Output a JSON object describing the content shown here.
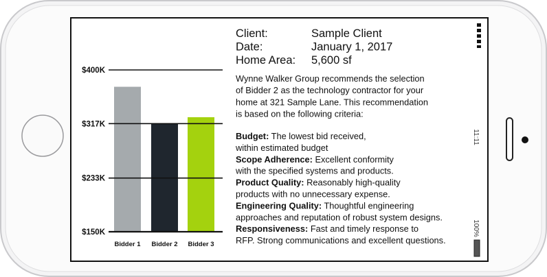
{
  "chart_data": {
    "type": "bar",
    "categories": [
      "Bidder 1",
      "Bidder 2",
      "Bidder 3"
    ],
    "values": [
      374,
      317,
      327
    ],
    "colors": [
      "#a5aaad",
      "#1f262e",
      "#a4d20e"
    ],
    "ylim": [
      150,
      400
    ],
    "yticks": [
      {
        "value": 150,
        "label": "$150K"
      },
      {
        "value": 233,
        "label": "$233K"
      },
      {
        "value": 317,
        "label": "$317K"
      },
      {
        "value": 400,
        "label": "$400K"
      }
    ],
    "grid": true
  },
  "details": [
    {
      "label": "Client:",
      "value": "Sample Client"
    },
    {
      "label": "Date:",
      "value": "January 1, 2017"
    },
    {
      "label": "Home Area:",
      "value": "5,600 sf"
    }
  ],
  "intro": [
    "Wynne Walker Group recommends the selection",
    "of Bidder 2 as the technology contractor for your",
    "home at 321 Sample Lane. This recommendation",
    "is based on the following criteria:"
  ],
  "criteria": [
    {
      "label": "Budget:",
      "lines": [
        "The lowest bid received,",
        "within estimated budget"
      ]
    },
    {
      "label": "Scope Adherence:",
      "lines": [
        "Excellent conformity",
        "with the specified systems and products."
      ]
    },
    {
      "label": "Product Quality:",
      "lines": [
        "Reasonably high-quality",
        "products with no unnecessary expense."
      ]
    },
    {
      "label": "Engineering Quality:",
      "lines": [
        "Thoughtful engineering",
        "approaches and reputation of robust system designs."
      ]
    },
    {
      "label": "Responsiveness:",
      "lines": [
        "Fast and timely response to",
        "RFP. Strong communications and excellent questions."
      ]
    }
  ],
  "status": {
    "time": "11:11",
    "battery": "100%"
  }
}
